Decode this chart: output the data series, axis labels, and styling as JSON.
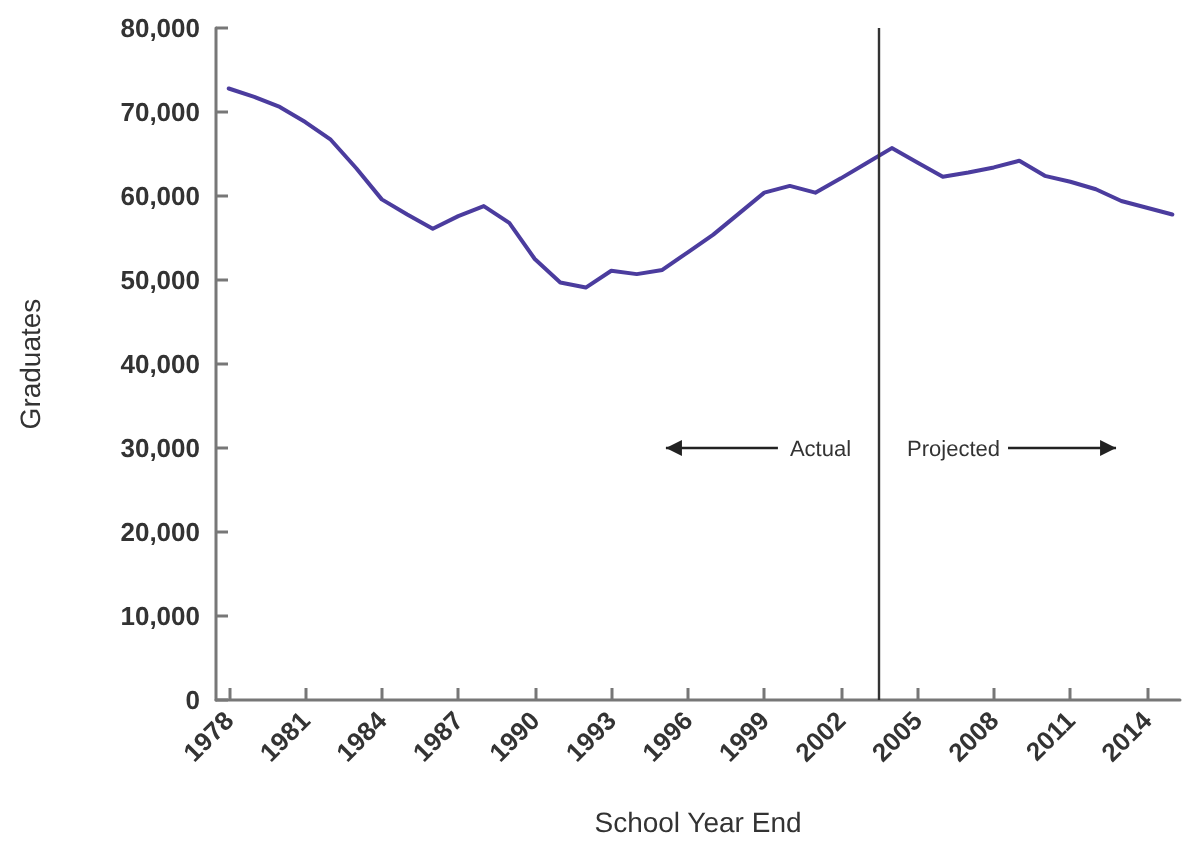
{
  "chart_data": {
    "type": "line",
    "xlabel": "School Year End",
    "ylabel": "Graduates",
    "x": [
      1978,
      1979,
      1980,
      1981,
      1982,
      1983,
      1984,
      1985,
      1986,
      1987,
      1988,
      1989,
      1990,
      1991,
      1992,
      1993,
      1994,
      1995,
      1996,
      1997,
      1998,
      1999,
      2000,
      2001,
      2002,
      2003,
      2004,
      2005,
      2006,
      2007,
      2008,
      2009,
      2010,
      2011,
      2012,
      2013,
      2014,
      2015
    ],
    "series": [
      {
        "color": "#4b3c9e",
        "values": [
          72800,
          71800,
          70600,
          68800,
          66700,
          63300,
          59600,
          57800,
          56100,
          57600,
          58800,
          56800,
          52500,
          49700,
          49100,
          51100,
          50700,
          51200,
          53300,
          55400,
          57900,
          60400,
          61200,
          60400,
          62100,
          63900,
          65700,
          64000,
          62300,
          62800,
          63400,
          64200,
          62400,
          61700,
          60800,
          59400,
          58600,
          57800
        ]
      }
    ],
    "xlim": [
      1977.5,
      2015.3
    ],
    "xticks": [
      1978,
      1981,
      1984,
      1987,
      1990,
      1993,
      1996,
      1999,
      2002,
      2005,
      2008,
      2011,
      2014
    ],
    "ylim": [
      0,
      80000
    ],
    "yticks": [
      0,
      {
        "value": 10000,
        "label": "10,000"
      },
      {
        "value": 20000,
        "label": "20,000"
      },
      {
        "value": 30000,
        "label": "30,000"
      },
      {
        "value": 40000,
        "label": "40,000"
      },
      {
        "value": 50000,
        "label": "50,000"
      },
      {
        "value": 60000,
        "label": "60,000"
      },
      {
        "value": 70000,
        "label": "70,000"
      },
      {
        "value": 80000,
        "label": "80,000"
      }
    ],
    "ref_lines": [
      {
        "axis": "x",
        "value": 2003.5,
        "color": "#333333"
      }
    ],
    "annotations": [
      "Actual",
      "Projected"
    ],
    "grid": false,
    "marker": "none",
    "line_style": "solid"
  }
}
